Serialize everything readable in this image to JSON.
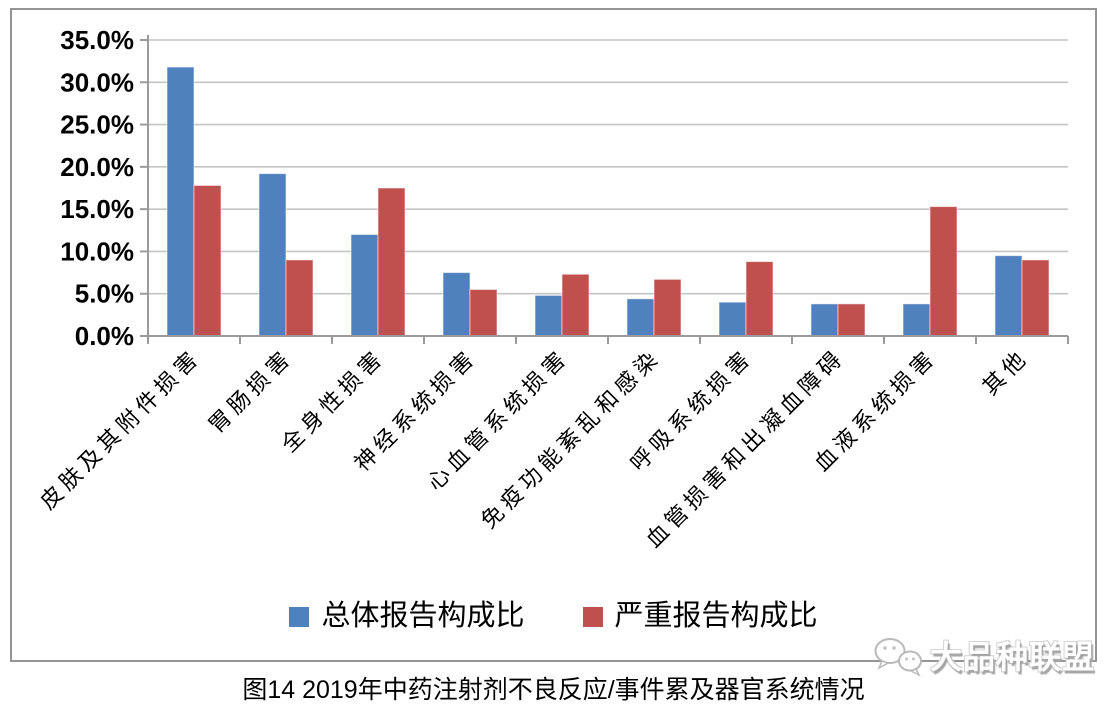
{
  "caption": "图14 2019年中药注射剂不良反应/事件累及器官系统情况",
  "watermark": {
    "label": "大品种联盟",
    "icon": "wechat-chat-bubbles-icon"
  },
  "chart_data": {
    "type": "bar",
    "title": "",
    "xlabel": "",
    "ylabel": "",
    "categories": [
      "皮肤及其附件损害",
      "胃肠损害",
      "全身性损害",
      "神经系统损害",
      "心血管系统损害",
      "免疫功能紊乱和感染",
      "呼吸系统损害",
      "血管损害和出凝血障碍",
      "血液系统损害",
      "其他"
    ],
    "series": [
      {
        "name": "总体报告构成比",
        "color": "#4F81BD",
        "values": [
          31.8,
          19.2,
          12.0,
          7.5,
          4.8,
          4.4,
          4.0,
          3.8,
          3.8,
          9.5
        ]
      },
      {
        "name": "严重报告构成比",
        "color": "#C0504D",
        "values": [
          17.8,
          9.0,
          17.5,
          5.5,
          7.3,
          6.7,
          8.8,
          3.8,
          15.3,
          9.0
        ]
      }
    ],
    "ylim": [
      0,
      35
    ],
    "y_tick_step": 5,
    "y_tick_labels": [
      "0.0%",
      "5.0%",
      "10.0%",
      "15.0%",
      "20.0%",
      "25.0%",
      "30.0%",
      "35.0%"
    ],
    "grid": "horizontal",
    "legend_position": "bottom-center",
    "colors": {
      "gridline": "#C4C4C4",
      "axis": "#9B9B9B",
      "frame": "#949494",
      "label_text": "#000000"
    }
  }
}
